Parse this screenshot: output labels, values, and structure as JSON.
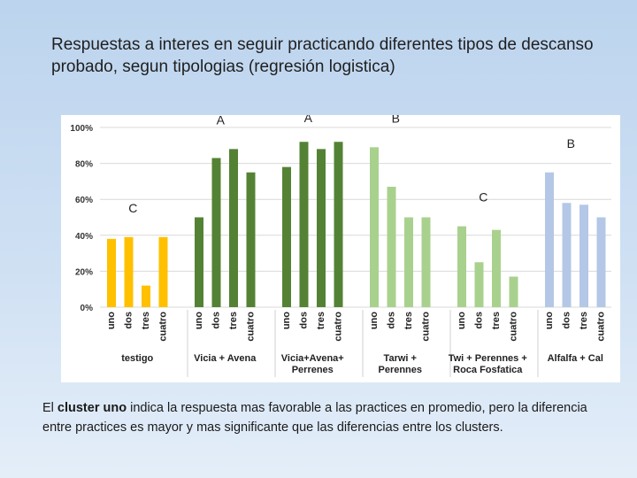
{
  "slide": {
    "title": "Respuestas a interes en seguir practicando diferentes tipos de descanso probado, segun tipologias (regresión logistica)",
    "caption_pre": "El ",
    "caption_bold": "cluster uno",
    "caption_post": " indica la respuesta mas favorable a las practices en promedio, pero la diferencia entre practices es mayor y mas significante que las diferencias entre los clusters."
  },
  "chart_data": {
    "type": "bar",
    "ylim": [
      0,
      100
    ],
    "yticks": [
      "0%",
      "20%",
      "40%",
      "60%",
      "80%",
      "100%"
    ],
    "grid": true,
    "categories": [
      "uno",
      "dos",
      "tres",
      "cuatro"
    ],
    "groups": [
      {
        "name_lines": [
          "testigo"
        ],
        "color": "#ffc000",
        "values": [
          38,
          39,
          12,
          39
        ],
        "annotation": "C"
      },
      {
        "name_lines": [
          "Vicia + Avena"
        ],
        "color": "#548235",
        "values": [
          50,
          83,
          88,
          75
        ],
        "annotation": "A"
      },
      {
        "name_lines": [
          "Vicia+Avena+",
          "Perrenes"
        ],
        "color": "#548235",
        "values": [
          78,
          92,
          88,
          92
        ],
        "annotation": "A"
      },
      {
        "name_lines": [
          "Tarwi +",
          "Perennes"
        ],
        "color": "#a9d18e",
        "values": [
          89,
          67,
          50,
          50
        ],
        "annotation": "B"
      },
      {
        "name_lines": [
          "Twi + Perennes +",
          "Roca Fosfatica"
        ],
        "color": "#a9d18e",
        "values": [
          45,
          25,
          43,
          17
        ],
        "annotation": "C"
      },
      {
        "name_lines": [
          "Alfalfa + Cal"
        ],
        "color": "#b4c7e7",
        "values": [
          75,
          58,
          57,
          50
        ],
        "annotation": "B"
      }
    ]
  }
}
